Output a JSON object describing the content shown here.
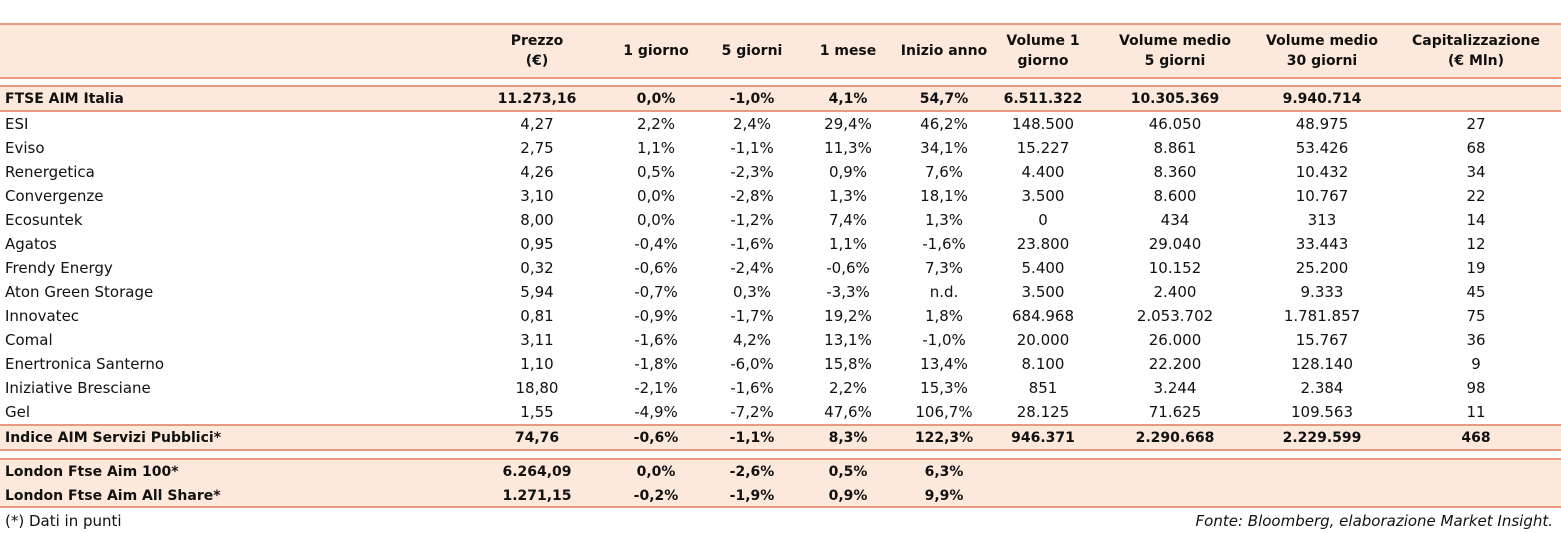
{
  "table": {
    "columns": [
      [
        "Prezzo",
        "(€)"
      ],
      [
        "1 giorno"
      ],
      [
        "5 giorni"
      ],
      [
        "1 mese"
      ],
      [
        "Inizio anno"
      ],
      [
        "Volume 1",
        "giorno"
      ],
      [
        "Volume medio",
        "5 giorni"
      ],
      [
        "Volume medio",
        "30 giorni"
      ],
      [
        "Capitalizzazione",
        "(€ Mln)"
      ]
    ],
    "index_row": {
      "name": "FTSE AIM Italia",
      "cells": [
        "11.273,16",
        "0,0%",
        "-1,0%",
        "4,1%",
        "54,7%",
        "6.511.322",
        "10.305.369",
        "9.940.714"
      ]
    },
    "rows": [
      {
        "name": "ESI",
        "cells": [
          "4,27",
          "2,2%",
          "2,4%",
          "29,4%",
          "46,2%",
          "148.500",
          "46.050",
          "48.975",
          "27"
        ]
      },
      {
        "name": "Eviso",
        "cells": [
          "2,75",
          "1,1%",
          "-1,1%",
          "11,3%",
          "34,1%",
          "15.227",
          "8.861",
          "53.426",
          "68"
        ]
      },
      {
        "name": "Renergetica",
        "cells": [
          "4,26",
          "0,5%",
          "-2,3%",
          "0,9%",
          "7,6%",
          "4.400",
          "8.360",
          "10.432",
          "34"
        ]
      },
      {
        "name": "Convergenze",
        "cells": [
          "3,10",
          "0,0%",
          "-2,8%",
          "1,3%",
          "18,1%",
          "3.500",
          "8.600",
          "10.767",
          "22"
        ]
      },
      {
        "name": "Ecosuntek",
        "cells": [
          "8,00",
          "0,0%",
          "-1,2%",
          "7,4%",
          "1,3%",
          "0",
          "434",
          "313",
          "14"
        ]
      },
      {
        "name": "Agatos",
        "cells": [
          "0,95",
          "-0,4%",
          "-1,6%",
          "1,1%",
          "-1,6%",
          "23.800",
          "29.040",
          "33.443",
          "12"
        ]
      },
      {
        "name": "Frendy Energy",
        "cells": [
          "0,32",
          "-0,6%",
          "-2,4%",
          "-0,6%",
          "7,3%",
          "5.400",
          "10.152",
          "25.200",
          "19"
        ]
      },
      {
        "name": "Aton Green Storage",
        "cells": [
          "5,94",
          "-0,7%",
          "0,3%",
          "-3,3%",
          "n.d.",
          "3.500",
          "2.400",
          "9.333",
          "45"
        ]
      },
      {
        "name": "Innovatec",
        "cells": [
          "0,81",
          "-0,9%",
          "-1,7%",
          "19,2%",
          "1,8%",
          "684.968",
          "2.053.702",
          "1.781.857",
          "75"
        ]
      },
      {
        "name": "Comal",
        "cells": [
          "3,11",
          "-1,6%",
          "4,2%",
          "13,1%",
          "-1,0%",
          "20.000",
          "26.000",
          "15.767",
          "36"
        ]
      },
      {
        "name": "Enertronica Santerno",
        "cells": [
          "1,10",
          "-1,8%",
          "-6,0%",
          "15,8%",
          "13,4%",
          "8.100",
          "22.200",
          "128.140",
          "9"
        ]
      },
      {
        "name": "Iniziative Bresciane",
        "cells": [
          "18,80",
          "-2,1%",
          "-1,6%",
          "2,2%",
          "15,3%",
          "851",
          "3.244",
          "2.384",
          "98"
        ]
      },
      {
        "name": "Gel",
        "cells": [
          "1,55",
          "-4,9%",
          "-7,2%",
          "47,6%",
          "106,7%",
          "28.125",
          "71.625",
          "109.563",
          "11"
        ]
      }
    ],
    "summary_row": {
      "name": "Indice AIM Servizi Pubblici*",
      "cells": [
        "74,76",
        "-0,6%",
        "-1,1%",
        "8,3%",
        "122,3%",
        "946.371",
        "2.290.668",
        "2.229.599",
        "468"
      ]
    },
    "london_rows": [
      {
        "name": "London Ftse Aim 100*",
        "cells": [
          "6.264,09",
          "0,0%",
          "-2,6%",
          "0,5%",
          "6,3%"
        ]
      },
      {
        "name": "London Ftse Aim All Share*",
        "cells": [
          "1.271,15",
          "-0,2%",
          "-1,9%",
          "0,9%",
          "9,9%"
        ]
      }
    ]
  },
  "footer": {
    "note": "(*) Dati in punti",
    "source": "Fonte: Bloomberg, elaborazione Market Insight."
  }
}
